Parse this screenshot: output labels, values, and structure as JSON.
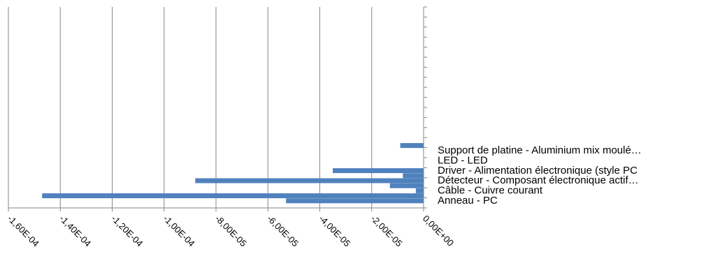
{
  "chart_data": {
    "type": "bar",
    "orientation": "horizontal",
    "grid": true,
    "xlim": [
      -0.00016,
      0
    ],
    "x_ticks": [
      -0.00016,
      -0.00014,
      -0.00012,
      -0.0001,
      -8e-05,
      -6e-05,
      -4e-05,
      -2e-05,
      0
    ],
    "x_tick_labels": [
      "-1,60E-04",
      "-1,40E-04",
      "-1,20E-04",
      "-1,00E-04",
      "-8,00E-05",
      "-6,00E-05",
      "-4,00E-05",
      "-2,00E-05",
      "0,00E+00"
    ],
    "categories": [
      "Anneau - PC",
      "Câble - Cuivre courant",
      "Détecteur - Composant électronique actif…",
      "Driver - Alimentation électronique (style PC",
      "LED - LED",
      "Support de platine - Aluminium mix moulé…"
    ],
    "bar_color": "#4f81bd",
    "series": [
      {
        "values": [
          -5.3e-05,
          -3e-06,
          -8.8e-05,
          -3.5e-05,
          0,
          0
        ]
      },
      {
        "values": [
          -0.000147,
          -1.3e-05,
          -8e-06,
          0,
          0,
          -9e-06
        ]
      }
    ]
  }
}
